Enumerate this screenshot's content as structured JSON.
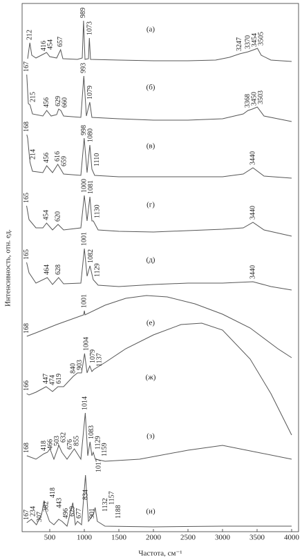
{
  "chart_data": {
    "type": "line",
    "x_label": "Частота, см⁻¹",
    "y_label": "Интенсивность, отн. ед.",
    "xlim": [
      100,
      4100
    ],
    "xticks": [
      500,
      1000,
      1500,
      2000,
      2500,
      3000,
      3500,
      4000
    ],
    "ylim": [
      0,
      765
    ],
    "series": [
      {
        "name": "(а)",
        "color": "#555555",
        "x": [
          180,
          212,
          240,
          300,
          416,
          454,
          500,
          600,
          657,
          690,
          900,
          970,
          989,
          1010,
          1060,
          1073,
          1090,
          1500,
          2000,
          2500,
          2900,
          3100,
          3247,
          3370,
          3454,
          3505,
          3560,
          3700,
          4000
        ],
        "values": [
          685,
          708,
          690,
          686,
          692,
          694,
          688,
          686,
          698,
          685,
          684,
          686,
          740,
          684,
          685,
          715,
          684,
          683,
          682,
          682,
          683,
          687,
          692,
          695,
          698,
          700,
          690,
          683,
          681
        ],
        "peaks": [
          212,
          416,
          454,
          657,
          989,
          1073,
          3247,
          3370,
          3454,
          3505
        ]
      },
      {
        "name": "(б)",
        "color": "#555555",
        "x": [
          167,
          190,
          215,
          250,
          400,
          456,
          520,
          600,
          629,
          660,
          700,
          950,
          993,
          1030,
          1079,
          1110,
          1500,
          2000,
          2500,
          3000,
          3300,
          3368,
          3430,
          3503,
          3600,
          4000
        ],
        "values": [
          662,
          620,
          618,
          605,
          602,
          610,
          602,
          604,
          612,
          610,
          602,
          600,
          660,
          602,
          622,
          600,
          598,
          596,
          596,
          598,
          605,
          610,
          612,
          615,
          602,
          594
        ],
        "peaks": [
          167,
          215,
          456,
          629,
          660,
          993,
          1079,
          3368,
          3450,
          3503
        ]
      },
      {
        "name": "(в)",
        "color": "#555555",
        "x": [
          168,
          180,
          214,
          250,
          400,
          456,
          540,
          616,
          659,
          700,
          950,
          998,
          1040,
          1080,
          1110,
          1150,
          1500,
          2000,
          2500,
          3000,
          3300,
          3440,
          3600,
          4000
        ],
        "values": [
          575,
          570,
          535,
          522,
          520,
          530,
          520,
          532,
          525,
          518,
          516,
          570,
          520,
          560,
          525,
          516,
          514,
          514,
          514,
          514,
          518,
          527,
          515,
          512
        ],
        "peaks": [
          168,
          214,
          456,
          616,
          659,
          998,
          1080,
          1110,
          3440
        ]
      },
      {
        "name": "(г)",
        "color": "#555555",
        "x": [
          165,
          200,
          300,
          400,
          454,
          540,
          620,
          700,
          950,
          1000,
          1040,
          1081,
          1110,
          1130,
          1200,
          1500,
          2000,
          2500,
          3000,
          3300,
          3440,
          3600,
          4000
        ],
        "values": [
          472,
          452,
          440,
          440,
          447,
          437,
          445,
          437,
          440,
          487,
          450,
          485,
          450,
          450,
          437,
          435,
          434,
          436,
          438,
          440,
          448,
          437,
          428
        ],
        "peaks": [
          165,
          454,
          620,
          1000,
          1081,
          1130,
          3440
        ]
      },
      {
        "name": "(д)",
        "color": "#555555",
        "x": [
          165,
          200,
          300,
          464,
          540,
          628,
          700,
          950,
          1001,
          1040,
          1082,
          1129,
          1200,
          1500,
          2000,
          2500,
          3000,
          3440,
          3700,
          4000
        ],
        "values": [
          390,
          375,
          360,
          368,
          358,
          368,
          359,
          360,
          410,
          370,
          385,
          365,
          357,
          355,
          358,
          360,
          360,
          362,
          355,
          350
        ],
        "peaks": [
          165,
          464,
          628,
          1001,
          1082,
          1129,
          3440
        ]
      },
      {
        "name": "(е)",
        "color": "#555555",
        "x": [
          168,
          300,
          600,
          990,
          1001,
          1010,
          1300,
          1600,
          1900,
          2200,
          2600,
          3000,
          3400,
          3800,
          4000
        ],
        "values": [
          283,
          288,
          300,
          314,
          320,
          314,
          328,
          338,
          342,
          340,
          330,
          315,
          295,
          265,
          252
        ],
        "peaks": [
          168,
          1001
        ]
      },
      {
        "name": "(ж)",
        "color": "#555555",
        "x": [
          166,
          200,
          300,
          447,
          474,
          540,
          619,
          700,
          840,
          903,
          960,
          1004,
          1040,
          1079,
          1110,
          1137,
          1300,
          1600,
          2000,
          2400,
          2700,
          3000,
          3400,
          3700,
          4000
        ],
        "values": [
          200,
          198,
          202,
          210,
          208,
          203,
          210,
          210,
          225,
          230,
          230,
          258,
          230,
          240,
          232,
          235,
          245,
          265,
          285,
          300,
          302,
          292,
          250,
          200,
          140
        ],
        "peaks": [
          166,
          447,
          474,
          619,
          840,
          903,
          1004,
          1079,
          1137
        ]
      },
      {
        "name": "(з)",
        "color": "#555555",
        "x": [
          168,
          300,
          418,
          466,
          503,
          560,
          632,
          676,
          750,
          855,
          950,
          1014,
          1050,
          1083,
          1110,
          1129,
          1159,
          1300,
          1800,
          2500,
          3000,
          3500,
          4000
        ],
        "values": [
          110,
          105,
          113,
          115,
          120,
          105,
          125,
          115,
          105,
          120,
          105,
          172,
          110,
          130,
          110,
          115,
          105,
          102,
          105,
          118,
          125,
          115,
          105
        ],
        "peaks": [
          168,
          418,
          466,
          503,
          632,
          676,
          855,
          1014,
          1083,
          1129,
          1159
        ]
      },
      {
        "name": "(и)",
        "color": "#555555",
        "x": [
          167,
          234,
          280,
          307,
          382,
          418,
          443,
          496,
          560,
          629,
          677,
          750,
          834,
          870,
          901,
          960,
          1017,
          1060,
          1132,
          1157,
          1188,
          1300,
          2000,
          3000,
          4000
        ],
        "values": [
          13,
          18,
          13,
          10,
          25,
          45,
          30,
          15,
          10,
          18,
          15,
          8,
          42,
          10,
          15,
          10,
          82,
          15,
          25,
          35,
          15,
          8,
          7,
          8,
          8
        ],
        "peaks": [
          167,
          234,
          307,
          382,
          418,
          443,
          496,
          629,
          677,
          834,
          901,
          1017,
          1132,
          1157,
          1188
        ]
      }
    ]
  }
}
